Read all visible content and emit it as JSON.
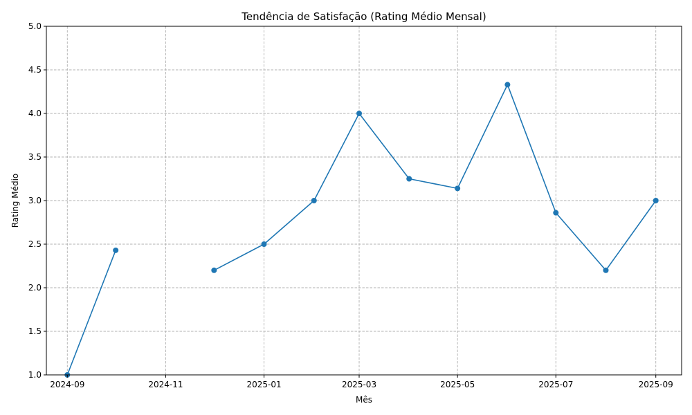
{
  "chart_data": {
    "type": "line",
    "title": "Tendência de Satisfação (Rating Médio Mensal)",
    "xlabel": "Mês",
    "ylabel": "Rating Médio",
    "x_tick_labels": [
      "2024-09",
      "2024-11",
      "2025-01",
      "2025-03",
      "2025-05",
      "2025-07",
      "2025-09"
    ],
    "y_tick_labels": [
      "1.0",
      "1.5",
      "2.0",
      "2.5",
      "3.0",
      "3.5",
      "4.0",
      "4.5",
      "5.0"
    ],
    "ylim": [
      1.0,
      5.0
    ],
    "xlim": [
      "2024-08-19",
      "2025-09-17"
    ],
    "grid": true,
    "line_style": "dashed-grid",
    "colors": {
      "series": "#1f77b4",
      "grid": "#b0b0b0"
    },
    "series": [
      {
        "marker": "circle",
        "points": [
          {
            "x": "2024-09-01",
            "y": 1.0
          },
          {
            "x": "2024-10-01",
            "y": 2.43
          },
          {
            "x": "2024-11-01",
            "y": null
          },
          {
            "x": "2024-12-01",
            "y": 2.2
          },
          {
            "x": "2025-01-01",
            "y": 2.5
          },
          {
            "x": "2025-02-01",
            "y": 3.0
          },
          {
            "x": "2025-03-01",
            "y": 4.0
          },
          {
            "x": "2025-04-01",
            "y": 3.25
          },
          {
            "x": "2025-05-01",
            "y": 3.14
          },
          {
            "x": "2025-06-01",
            "y": 4.33
          },
          {
            "x": "2025-07-01",
            "y": 2.86
          },
          {
            "x": "2025-08-01",
            "y": 2.2
          },
          {
            "x": "2025-09-01",
            "y": 3.0
          }
        ]
      }
    ]
  }
}
